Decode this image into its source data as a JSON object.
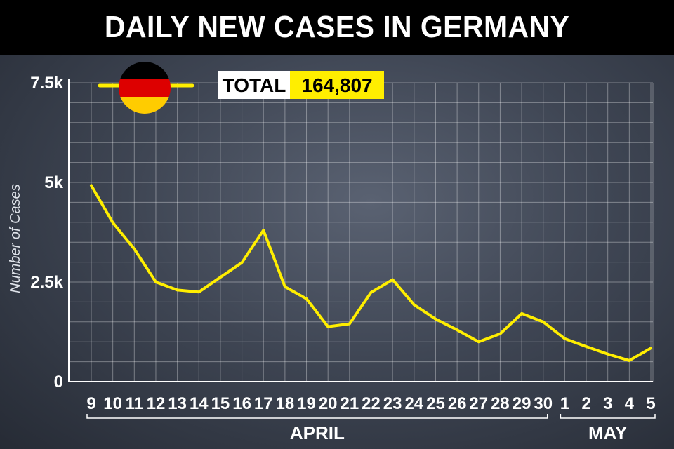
{
  "title": "DAILY NEW CASES IN GERMANY",
  "total": {
    "label": "TOTAL",
    "value": "164,807"
  },
  "legend": {
    "flag": "germany-flag-icon"
  },
  "colors": {
    "line": "#ffee00",
    "total_bg": "#ffee00"
  },
  "chart_data": {
    "type": "line",
    "title": "DAILY NEW CASES IN GERMANY",
    "ylabel": "Number of Cases",
    "xlabel": "",
    "ylim": [
      0,
      7500
    ],
    "yticks": [
      0,
      2500,
      5000,
      7500
    ],
    "ytick_labels": [
      "0",
      "2.5k",
      "5k",
      "7.5k"
    ],
    "grid": true,
    "categories": [
      "9",
      "10",
      "11",
      "12",
      "13",
      "14",
      "15",
      "16",
      "17",
      "18",
      "19",
      "20",
      "21",
      "22",
      "23",
      "24",
      "25",
      "26",
      "27",
      "28",
      "29",
      "30",
      "1",
      "2",
      "3",
      "4",
      "5"
    ],
    "month_groups": [
      {
        "label": "APRIL",
        "start": 0,
        "end": 21
      },
      {
        "label": "MAY",
        "start": 22,
        "end": 26
      }
    ],
    "series": [
      {
        "values": [
          4923,
          3990,
          3330,
          2500,
          2300,
          2250,
          2620,
          2990,
          3800,
          2380,
          2080,
          1380,
          1450,
          2240,
          2560,
          1930,
          1570,
          1300,
          1000,
          1200,
          1710,
          1500,
          1080,
          880,
          690,
          530,
          840
        ]
      }
    ]
  }
}
